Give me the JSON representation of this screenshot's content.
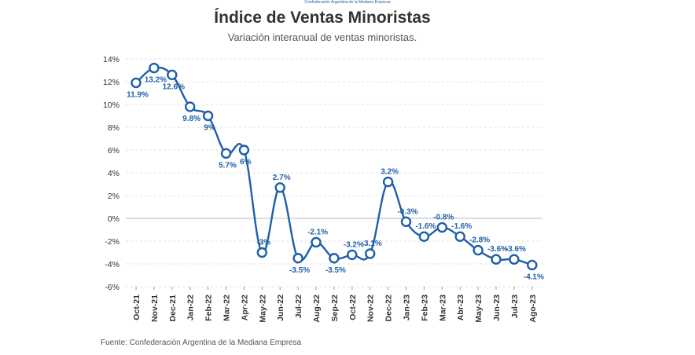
{
  "brand_text": "Confederación Argentina de la Mediana Empresa",
  "source": "Fuente: Confederación Argentina de la Mediana Empresa",
  "colors": {
    "line": "#1f5fa8",
    "label": "#1f5fa8",
    "marker_fill": "#ffffff"
  },
  "chart_data": {
    "type": "line",
    "title": "Índice de Ventas Minoristas",
    "subtitle": "Variación interanual de ventas minoristas.",
    "xlabel": "",
    "ylabel": "",
    "ylim": [
      -6,
      14
    ],
    "yticks": [
      14,
      12,
      10,
      8,
      6,
      4,
      2,
      0,
      -2,
      -4,
      -6
    ],
    "ytick_labels": [
      "14%",
      "12%",
      "10%",
      "8%",
      "6%",
      "4%",
      "2%",
      "0%",
      "-2%",
      "-4%",
      "-6%"
    ],
    "grid": true,
    "categories": [
      "Oct-21",
      "Nov-21",
      "Dec-21",
      "Jan-22",
      "Feb-22",
      "Mar-22",
      "Apr-22",
      "May-22",
      "Jun-22",
      "Jul-22",
      "Aug-22",
      "Sep-22",
      "Oct-22",
      "Nov-22",
      "Dec-22",
      "Jan-23",
      "Feb-23",
      "Mar-23",
      "Abr-23",
      "May-23",
      "Jun-23",
      "Jul-23",
      "Ago-23"
    ],
    "values": [
      11.9,
      13.2,
      12.6,
      9.8,
      9,
      5.7,
      6,
      -3,
      2.7,
      -3.5,
      -2.1,
      -3.5,
      -3.2,
      -3.1,
      3.2,
      -0.3,
      -1.6,
      -0.8,
      -1.6,
      -2.8,
      -3.6,
      -3.6,
      -4.1
    ],
    "data_labels": [
      "11.9%",
      "13.2%",
      "12.6%",
      "9.8%",
      "9%",
      "5.7%",
      "6%",
      "-3%",
      "2.7%",
      "-3.5%",
      "-2.1%",
      "-3.5%",
      "-3.2%",
      "-3.1%",
      "3.2%",
      "-0.3%",
      "-1.6%",
      "-0.8%",
      "-1.6%",
      "-2.8%",
      "-3.6%",
      "-3.6%",
      "-4.1%"
    ]
  }
}
